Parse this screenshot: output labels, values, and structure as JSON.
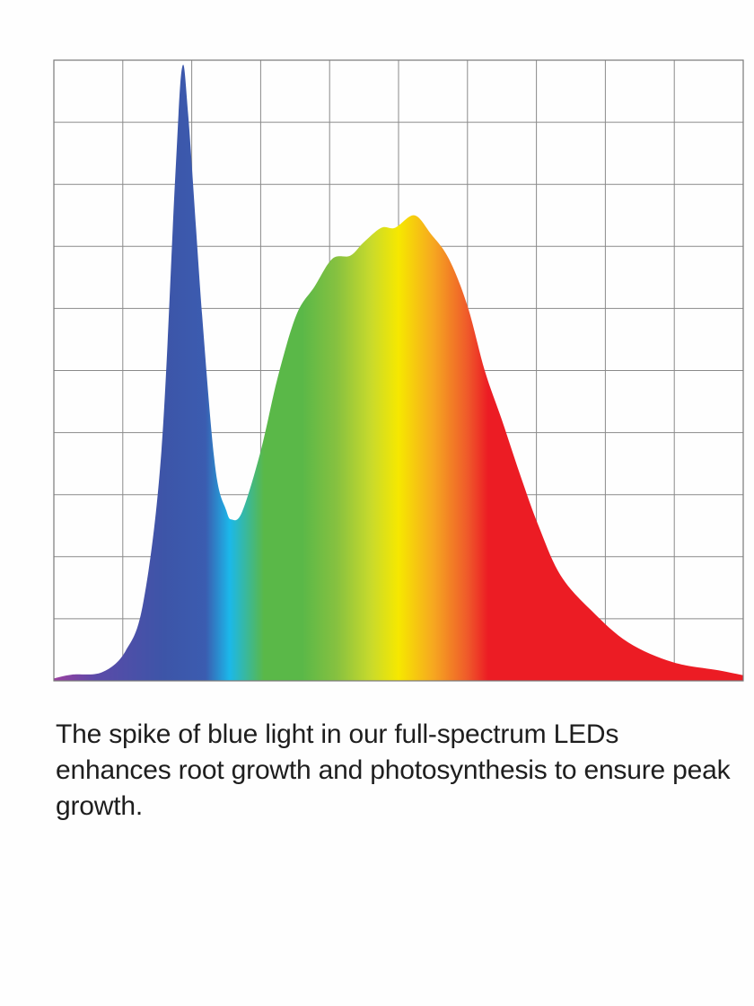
{
  "chart_data": {
    "type": "area",
    "title": "",
    "xlabel": "",
    "ylabel": "",
    "xlim": [
      0,
      10
    ],
    "ylim": [
      0,
      10
    ],
    "grid": true,
    "grid_divisions": {
      "x": 10,
      "y": 10
    },
    "fill": "rainbow spectrum gradient (violet to red, left to right)",
    "gradient_colors": [
      "#9b3fa0",
      "#5b4aa8",
      "#3d55a8",
      "#3b5cb0",
      "#1bb8ea",
      "#5ab848",
      "#5ab848",
      "#86c140",
      "#c8da2c",
      "#f6e800",
      "#f6a820",
      "#ef5a2a",
      "#ec1c24",
      "#ec1c24"
    ],
    "grid_color": "#8a8a8a",
    "series": [
      {
        "x": [
          0,
          0.26,
          0.7,
          1.04,
          1.3,
          1.56,
          1.76,
          1.86,
          1.95,
          2.15,
          2.34,
          2.5,
          2.58,
          2.73,
          3.0,
          3.25,
          3.52,
          3.78,
          4.04,
          4.3,
          4.49,
          4.75,
          4.95,
          5.23,
          5.47,
          5.73,
          6.0,
          6.25,
          6.5,
          6.77,
          7.03,
          7.35,
          7.8,
          8.33,
          8.98,
          9.64,
          10
        ],
        "y": [
          0.04,
          0.1,
          0.14,
          0.48,
          1.28,
          3.7,
          8.1,
          9.88,
          9.1,
          5.9,
          3.45,
          2.75,
          2.6,
          2.72,
          3.7,
          4.9,
          5.9,
          6.35,
          6.8,
          6.85,
          7.06,
          7.3,
          7.3,
          7.5,
          7.2,
          6.8,
          6.04,
          5.0,
          4.2,
          3.3,
          2.5,
          1.7,
          1.13,
          0.62,
          0.3,
          0.17,
          0.09
        ]
      }
    ]
  },
  "caption": "The spike of blue light in our full-spectrum LEDs enhances root growth and photosynthesis to ensure peak growth."
}
